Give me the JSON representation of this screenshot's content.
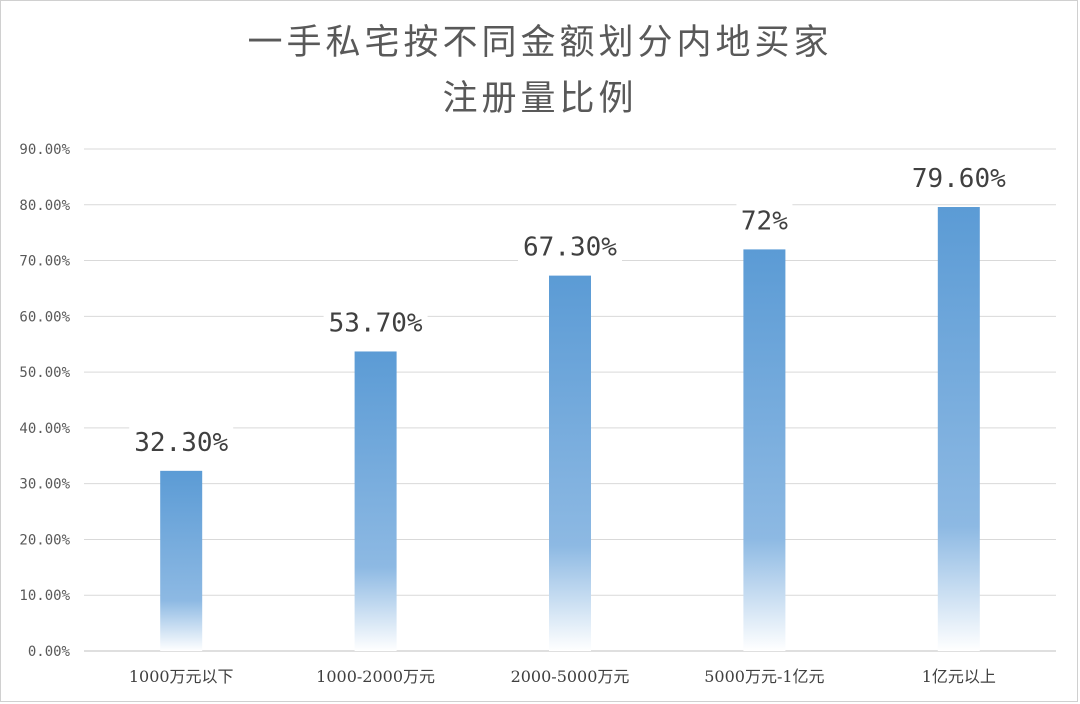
{
  "chart_data": {
    "type": "bar",
    "title_lines": [
      "一手私宅按不同金额划分内地买家",
      "注册量比例"
    ],
    "categories": [
      "1000万元以下",
      "1000-2000万元",
      "2000-5000万元",
      "5000万元-1亿元",
      "1亿元以上"
    ],
    "values": [
      32.3,
      53.7,
      67.3,
      72,
      79.6
    ],
    "data_labels": [
      "32.30%",
      "53.70%",
      "67.30%",
      "72%",
      "79.60%"
    ],
    "ylim": [
      0,
      90
    ],
    "y_ticks": [
      "0.00%",
      "10.00%",
      "20.00%",
      "30.00%",
      "40.00%",
      "50.00%",
      "60.00%",
      "70.00%",
      "80.00%",
      "90.00%"
    ],
    "grid": true,
    "bar_color": "#5B9BD5",
    "grid_color": "#d9d9d9"
  }
}
